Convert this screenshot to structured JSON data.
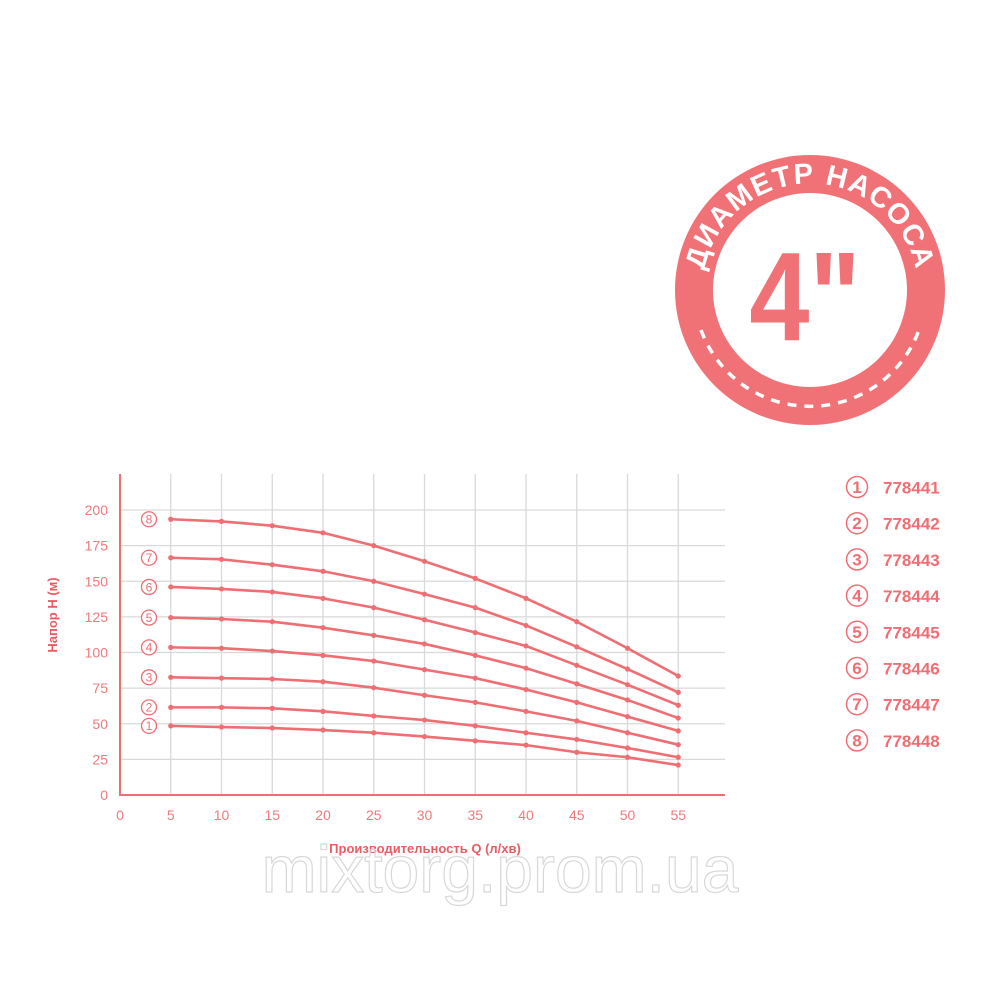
{
  "badge": {
    "ring_text": "ДИАМЕТР НАСОСА",
    "center_text": "4\"",
    "color": "#f07276"
  },
  "watermark": "mixtorg.prom.ua",
  "chart_data": {
    "type": "line",
    "xlabel": "Производительность Q (л/хв)",
    "ylabel": "Напор H (м)",
    "xlim": [
      0,
      60
    ],
    "ylim": [
      0,
      200
    ],
    "xticks": [
      0,
      5,
      10,
      15,
      20,
      25,
      30,
      35,
      40,
      45,
      50,
      55
    ],
    "yticks": [
      0,
      25,
      50,
      75,
      100,
      125,
      150,
      175,
      200
    ],
    "grid": true,
    "color": "#ee6e73",
    "grid_color": "#d9d9d9",
    "x": [
      5,
      10,
      15,
      20,
      25,
      30,
      35,
      40,
      45,
      50,
      55
    ],
    "series": [
      {
        "name": "1",
        "values": [
          48.5,
          47.7,
          47,
          45.6,
          43.7,
          41,
          38,
          35,
          30,
          26.5,
          21
        ]
      },
      {
        "name": "2",
        "values": [
          61.5,
          61.5,
          60.8,
          58.7,
          55.5,
          52.6,
          48.5,
          43.7,
          39,
          33,
          26.5
        ]
      },
      {
        "name": "3",
        "values": [
          82.6,
          82,
          81.4,
          79.5,
          75.3,
          70,
          65,
          58.7,
          52,
          43.7,
          35.3
        ]
      },
      {
        "name": "4",
        "values": [
          103.6,
          103,
          101,
          98,
          94,
          88,
          82,
          74,
          65,
          55,
          45
        ]
      },
      {
        "name": "5",
        "values": [
          124.5,
          123.5,
          121.6,
          117.4,
          112,
          106,
          98,
          89,
          78,
          66.7,
          54
        ]
      },
      {
        "name": "6",
        "values": [
          146,
          144.6,
          142.5,
          138,
          131.5,
          123,
          114,
          104.6,
          91,
          77.4,
          63
        ]
      },
      {
        "name": "7",
        "values": [
          166.5,
          165.4,
          161.6,
          157,
          150,
          141,
          131.5,
          119,
          104,
          88.4,
          72
        ]
      },
      {
        "name": "8",
        "values": [
          193.5,
          192,
          189,
          184,
          175,
          164,
          152,
          138,
          121.6,
          103,
          83.5
        ]
      }
    ],
    "legend": [
      {
        "num": "1",
        "label": "778441"
      },
      {
        "num": "2",
        "label": "778442"
      },
      {
        "num": "3",
        "label": "778443"
      },
      {
        "num": "4",
        "label": "778444"
      },
      {
        "num": "5",
        "label": "778445"
      },
      {
        "num": "6",
        "label": "778446"
      },
      {
        "num": "7",
        "label": "778447"
      },
      {
        "num": "8",
        "label": "778448"
      }
    ],
    "legend_position": "right"
  }
}
